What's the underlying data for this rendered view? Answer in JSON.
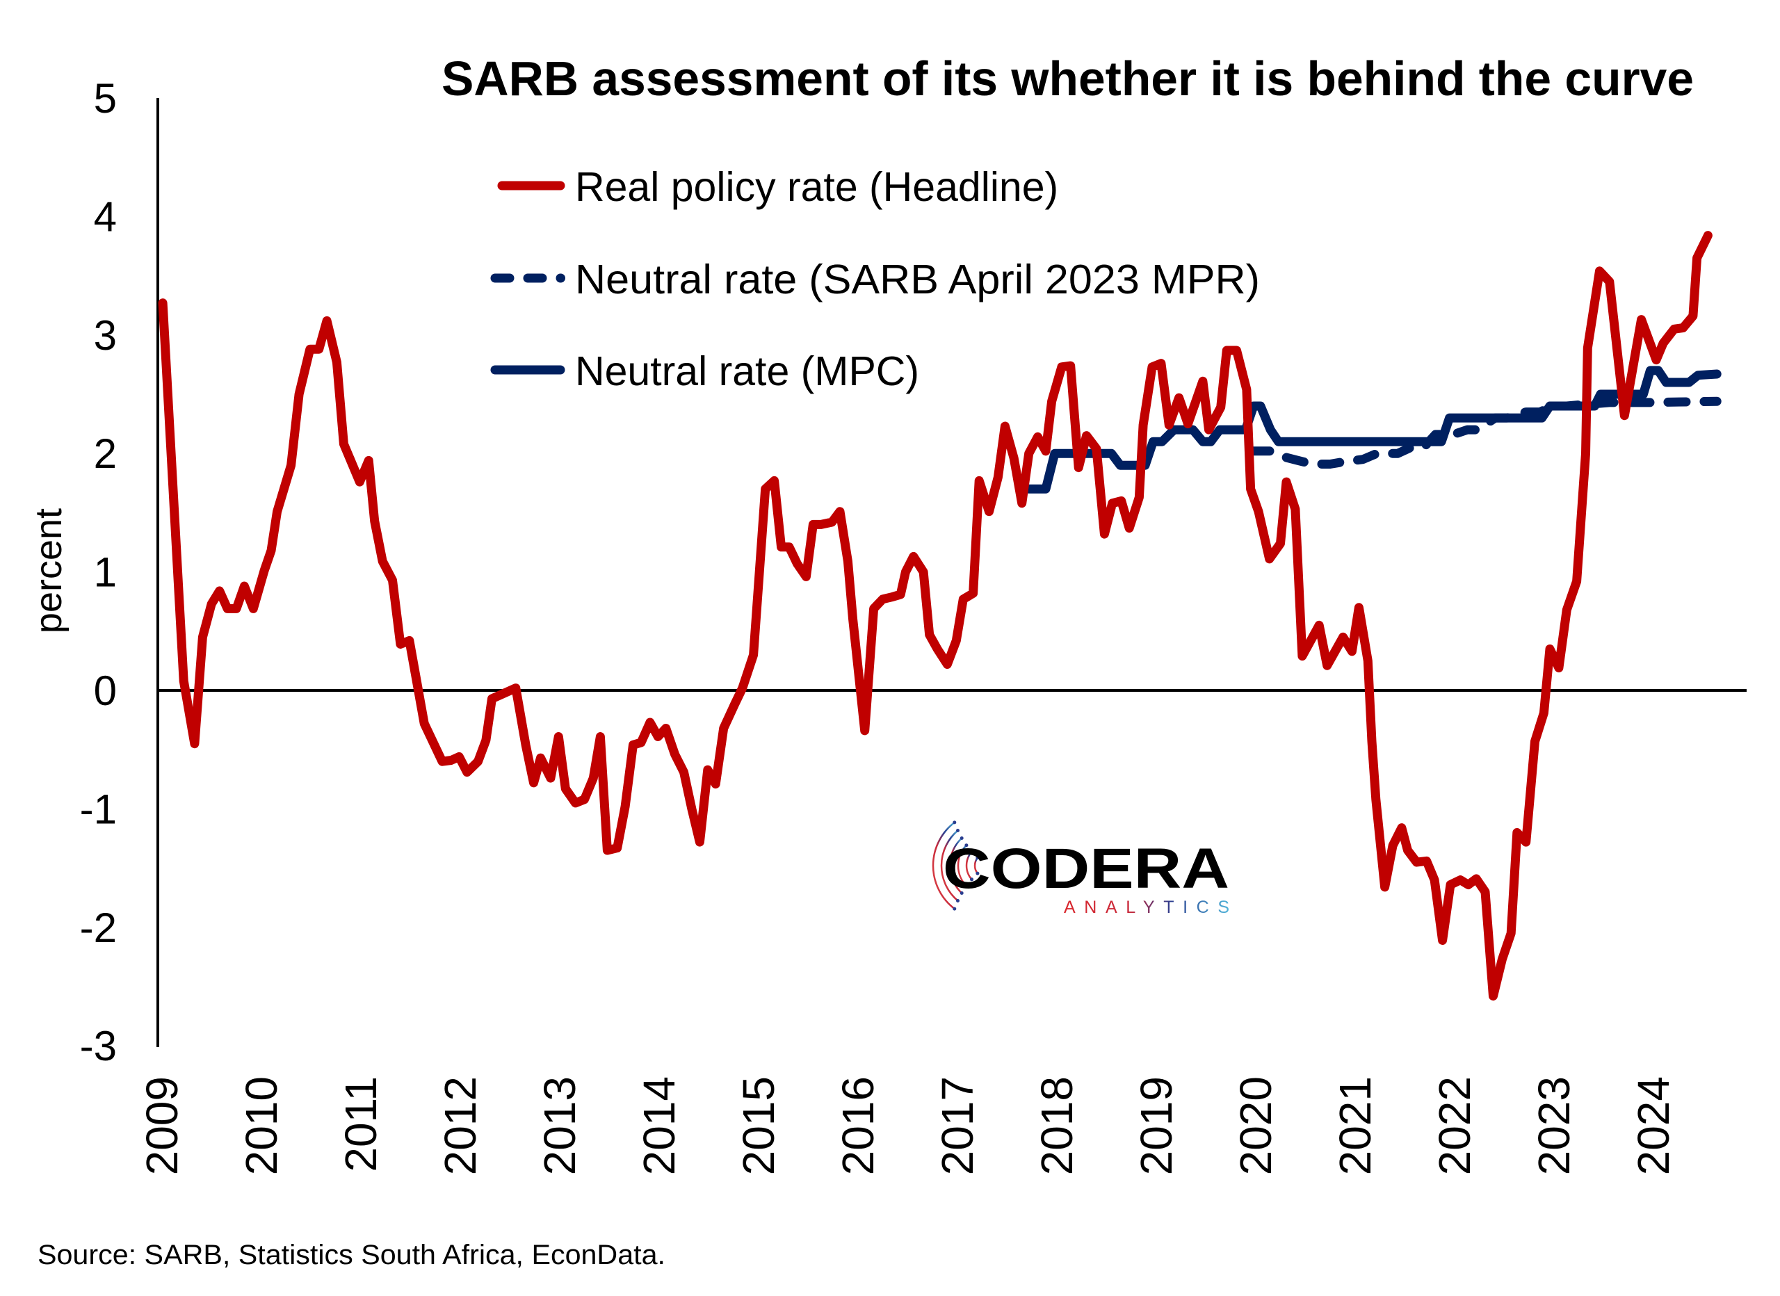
{
  "chart_data": {
    "type": "line",
    "title": "SARB assessment of its whether it is behind the curve",
    "xlabel": "",
    "ylabel": "percent",
    "ylim": [
      -3,
      5
    ],
    "yticks": [
      "5",
      "4",
      "3",
      "2",
      "1",
      "0",
      "-1",
      "-2",
      "-3"
    ],
    "ytick_values": [
      5,
      4,
      3,
      2,
      1,
      0,
      -1,
      -2,
      -3
    ],
    "xlim": [
      2009,
      2024.75
    ],
    "xticks": [
      "2009",
      "2010",
      "2011",
      "2012",
      "2013",
      "2014",
      "2015",
      "2016",
      "2017",
      "2018",
      "2019",
      "2020",
      "2021",
      "2022",
      "2023",
      "2024"
    ],
    "grid": false,
    "zero_line": true,
    "legend_position": "top-center",
    "series": [
      {
        "name": "Real policy rate (Headline)",
        "color": "#C00000",
        "style": "solid",
        "points": [
          [
            2009.05,
            3.27
          ],
          [
            2009.26,
            0.08
          ],
          [
            2009.37,
            -0.45
          ],
          [
            2009.45,
            0.45
          ],
          [
            2009.54,
            0.73
          ],
          [
            2009.62,
            0.84
          ],
          [
            2009.7,
            0.69
          ],
          [
            2009.79,
            0.69
          ],
          [
            2009.87,
            0.88
          ],
          [
            2009.96,
            0.69
          ],
          [
            2010.07,
            1.01
          ],
          [
            2010.14,
            1.18
          ],
          [
            2010.2,
            1.51
          ],
          [
            2010.34,
            1.9
          ],
          [
            2010.42,
            2.5
          ],
          [
            2010.53,
            2.88
          ],
          [
            2010.62,
            2.88
          ],
          [
            2010.7,
            3.12
          ],
          [
            2010.8,
            2.77
          ],
          [
            2010.87,
            2.08
          ],
          [
            2011.03,
            1.76
          ],
          [
            2011.12,
            1.94
          ],
          [
            2011.18,
            1.43
          ],
          [
            2011.26,
            1.09
          ],
          [
            2011.36,
            0.93
          ],
          [
            2011.44,
            0.39
          ],
          [
            2011.53,
            0.42
          ],
          [
            2011.68,
            -0.28
          ],
          [
            2011.86,
            -0.6
          ],
          [
            2011.95,
            -0.59
          ],
          [
            2012.03,
            -0.56
          ],
          [
            2012.11,
            -0.69
          ],
          [
            2012.22,
            -0.6
          ],
          [
            2012.3,
            -0.42
          ],
          [
            2012.36,
            -0.07
          ],
          [
            2012.6,
            0.02
          ],
          [
            2012.7,
            -0.46
          ],
          [
            2012.78,
            -0.78
          ],
          [
            2012.85,
            -0.57
          ],
          [
            2012.95,
            -0.74
          ],
          [
            2013.03,
            -0.39
          ],
          [
            2013.1,
            -0.83
          ],
          [
            2013.2,
            -0.95
          ],
          [
            2013.29,
            -0.92
          ],
          [
            2013.38,
            -0.74
          ],
          [
            2013.45,
            -0.39
          ],
          [
            2013.52,
            -1.35
          ],
          [
            2013.62,
            -1.33
          ],
          [
            2013.7,
            -0.98
          ],
          [
            2013.78,
            -0.46
          ],
          [
            2013.86,
            -0.44
          ],
          [
            2013.95,
            -0.27
          ],
          [
            2014.03,
            -0.39
          ],
          [
            2014.11,
            -0.32
          ],
          [
            2014.2,
            -0.54
          ],
          [
            2014.29,
            -0.69
          ],
          [
            2014.37,
            -1.0
          ],
          [
            2014.45,
            -1.28
          ],
          [
            2014.53,
            -0.67
          ],
          [
            2014.61,
            -0.79
          ],
          [
            2014.69,
            -0.32
          ],
          [
            2014.8,
            -0.12
          ],
          [
            2014.88,
            0.02
          ],
          [
            2014.99,
            0.3
          ],
          [
            2015.07,
            1.23
          ],
          [
            2015.11,
            1.7
          ],
          [
            2015.2,
            1.77
          ],
          [
            2015.27,
            1.21
          ],
          [
            2015.35,
            1.21
          ],
          [
            2015.43,
            1.07
          ],
          [
            2015.52,
            0.96
          ],
          [
            2015.59,
            1.4
          ],
          [
            2015.67,
            1.4
          ],
          [
            2015.78,
            1.42
          ],
          [
            2015.86,
            1.51
          ],
          [
            2015.94,
            1.09
          ],
          [
            2015.99,
            0.6
          ],
          [
            2016.11,
            -0.34
          ],
          [
            2016.2,
            0.69
          ],
          [
            2016.29,
            0.77
          ],
          [
            2016.39,
            0.79
          ],
          [
            2016.47,
            0.81
          ],
          [
            2016.52,
            1.0
          ],
          [
            2016.6,
            1.13
          ],
          [
            2016.7,
            1.0
          ],
          [
            2016.76,
            0.47
          ],
          [
            2016.84,
            0.35
          ],
          [
            2016.94,
            0.22
          ],
          [
            2017.03,
            0.42
          ],
          [
            2017.1,
            0.77
          ],
          [
            2017.2,
            0.82
          ],
          [
            2017.26,
            1.77
          ],
          [
            2017.36,
            1.51
          ],
          [
            2017.45,
            1.8
          ],
          [
            2017.52,
            2.23
          ],
          [
            2017.61,
            1.96
          ],
          [
            2017.69,
            1.58
          ],
          [
            2017.76,
            2.0
          ],
          [
            2017.85,
            2.14
          ],
          [
            2017.93,
            2.02
          ],
          [
            2017.99,
            2.44
          ],
          [
            2018.09,
            2.73
          ],
          [
            2018.18,
            2.74
          ],
          [
            2018.26,
            1.88
          ],
          [
            2018.34,
            2.15
          ],
          [
            2018.44,
            2.04
          ],
          [
            2018.52,
            1.32
          ],
          [
            2018.6,
            1.58
          ],
          [
            2018.69,
            1.6
          ],
          [
            2018.77,
            1.37
          ],
          [
            2018.87,
            1.63
          ],
          [
            2018.91,
            2.24
          ],
          [
            2019.0,
            2.73
          ],
          [
            2019.09,
            2.76
          ],
          [
            2019.17,
            2.24
          ],
          [
            2019.27,
            2.47
          ],
          [
            2019.36,
            2.25
          ],
          [
            2019.51,
            2.61
          ],
          [
            2019.57,
            2.2
          ],
          [
            2019.69,
            2.39
          ],
          [
            2019.75,
            2.87
          ],
          [
            2019.85,
            2.87
          ],
          [
            2019.95,
            2.54
          ],
          [
            2019.99,
            1.7
          ],
          [
            2020.07,
            1.51
          ],
          [
            2020.18,
            1.11
          ],
          [
            2020.29,
            1.24
          ],
          [
            2020.35,
            1.76
          ],
          [
            2020.44,
            1.53
          ],
          [
            2020.51,
            0.29
          ],
          [
            2020.68,
            0.55
          ],
          [
            2020.76,
            0.21
          ],
          [
            2020.92,
            0.45
          ],
          [
            2021.01,
            0.33
          ],
          [
            2021.08,
            0.7
          ],
          [
            2021.17,
            0.25
          ],
          [
            2021.21,
            -0.43
          ],
          [
            2021.25,
            -0.92
          ],
          [
            2021.34,
            -1.66
          ],
          [
            2021.42,
            -1.31
          ],
          [
            2021.51,
            -1.16
          ],
          [
            2021.57,
            -1.35
          ],
          [
            2021.66,
            -1.45
          ],
          [
            2021.76,
            -1.44
          ],
          [
            2021.84,
            -1.6
          ],
          [
            2021.92,
            -2.11
          ],
          [
            2022.0,
            -1.64
          ],
          [
            2022.1,
            -1.6
          ],
          [
            2022.18,
            -1.64
          ],
          [
            2022.26,
            -1.59
          ],
          [
            2022.35,
            -1.7
          ],
          [
            2022.43,
            -2.58
          ],
          [
            2022.52,
            -2.27
          ],
          [
            2022.61,
            -2.05
          ],
          [
            2022.67,
            -1.2
          ],
          [
            2022.76,
            -1.28
          ],
          [
            2022.85,
            -0.43
          ],
          [
            2022.94,
            -0.19
          ],
          [
            2023.0,
            0.35
          ],
          [
            2023.09,
            0.19
          ],
          [
            2023.17,
            0.68
          ],
          [
            2023.27,
            0.92
          ],
          [
            2023.36,
            2.0
          ],
          [
            2023.38,
            2.89
          ],
          [
            2023.5,
            3.54
          ],
          [
            2023.6,
            3.45
          ],
          [
            2023.75,
            2.32
          ],
          [
            2023.92,
            3.13
          ],
          [
            2024.07,
            2.79
          ],
          [
            2024.14,
            2.93
          ],
          [
            2024.25,
            3.05
          ],
          [
            2024.34,
            3.06
          ],
          [
            2024.44,
            3.16
          ],
          [
            2024.48,
            3.65
          ],
          [
            2024.59,
            3.84
          ]
        ]
      },
      {
        "name": "Neutral rate (SARB April 2023 MPR)",
        "color": "#002060",
        "style": "dashed",
        "points": [
          [
            2020.0,
            2.02
          ],
          [
            2020.19,
            2.02
          ],
          [
            2020.33,
            1.97
          ],
          [
            2020.47,
            1.94
          ],
          [
            2020.61,
            1.91
          ],
          [
            2020.79,
            1.91
          ],
          [
            2020.93,
            1.93
          ],
          [
            2021.12,
            1.95
          ],
          [
            2021.26,
            2.0
          ],
          [
            2021.47,
            2.0
          ],
          [
            2021.6,
            2.05
          ],
          [
            2021.73,
            2.05
          ],
          [
            2021.85,
            2.16
          ],
          [
            2022.03,
            2.16
          ],
          [
            2022.17,
            2.2
          ],
          [
            2022.27,
            2.2
          ],
          [
            2022.45,
            2.3
          ],
          [
            2022.57,
            2.3
          ],
          [
            2022.76,
            2.35
          ],
          [
            2022.9,
            2.35
          ],
          [
            2023.03,
            2.4
          ],
          [
            2023.17,
            2.4
          ],
          [
            2023.3,
            2.41
          ],
          [
            2023.6,
            2.43
          ],
          [
            2024.0,
            2.43
          ],
          [
            2024.68,
            2.44
          ]
        ]
      },
      {
        "name": "Neutral rate (MPC)",
        "color": "#002060",
        "style": "solid",
        "points": [
          [
            2017.76,
            1.7
          ],
          [
            2017.93,
            1.7
          ],
          [
            2018.02,
            2.0
          ],
          [
            2018.59,
            2.0
          ],
          [
            2018.68,
            1.9
          ],
          [
            2018.93,
            1.9
          ],
          [
            2019.01,
            2.1
          ],
          [
            2019.1,
            2.1
          ],
          [
            2019.22,
            2.2
          ],
          [
            2019.41,
            2.2
          ],
          [
            2019.51,
            2.1
          ],
          [
            2019.59,
            2.1
          ],
          [
            2019.68,
            2.2
          ],
          [
            2019.94,
            2.2
          ],
          [
            2020.02,
            2.4
          ],
          [
            2020.09,
            2.4
          ],
          [
            2020.19,
            2.2
          ],
          [
            2020.27,
            2.1
          ],
          [
            2021.91,
            2.1
          ],
          [
            2021.99,
            2.3
          ],
          [
            2022.92,
            2.3
          ],
          [
            2023.0,
            2.4
          ],
          [
            2023.45,
            2.4
          ],
          [
            2023.51,
            2.5
          ],
          [
            2023.94,
            2.5
          ],
          [
            2024.01,
            2.7
          ],
          [
            2024.09,
            2.7
          ],
          [
            2024.17,
            2.6
          ],
          [
            2024.4,
            2.6
          ],
          [
            2024.49,
            2.66
          ],
          [
            2024.68,
            2.67
          ]
        ]
      }
    ],
    "source": "Source: SARB, Statistics South Africa, EconData."
  },
  "logo": {
    "name": "CODERA",
    "tagline": "ANALYTICS",
    "colors": {
      "red": "#D9262C",
      "navy": "#2A3D8F",
      "light_blue": "#4FB3D9"
    }
  },
  "colors": {
    "axis": "#000000",
    "real_rate": "#C00000",
    "neutral": "#002060"
  }
}
